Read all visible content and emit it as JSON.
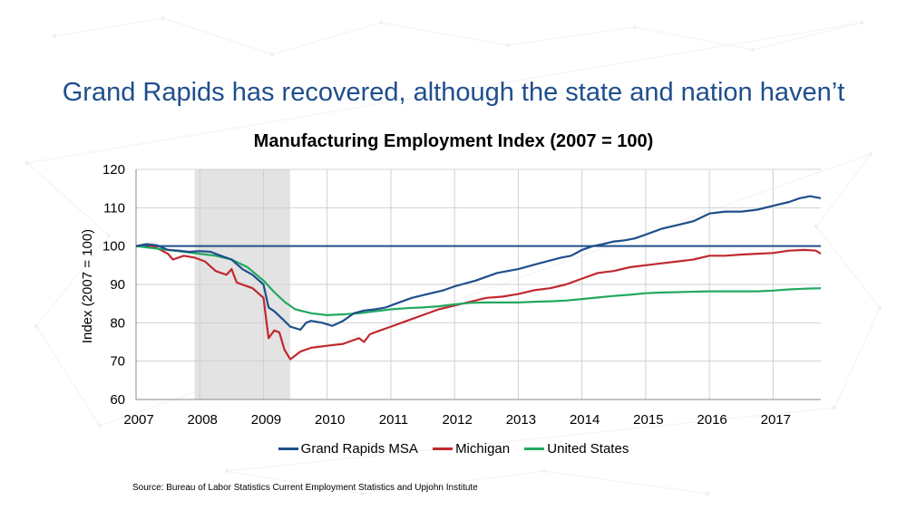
{
  "slide": {
    "title": "Grand Rapids has recovered, although the state and nation haven’t",
    "source": "Source: Bureau of Labor Statistics Current Employment Statistics and Upjohn Institute"
  },
  "chart_data": {
    "type": "line",
    "title": "Manufacturing Employment Index (2007 = 100)",
    "xlabel": "",
    "ylabel": "Index (2007 = 100)",
    "xlim": [
      2007,
      2017.75
    ],
    "ylim": [
      60,
      120
    ],
    "x_ticks": [
      "2007",
      "2008",
      "2009",
      "2010",
      "2011",
      "2012",
      "2013",
      "2014",
      "2015",
      "2016",
      "2017"
    ],
    "y_ticks": [
      "60",
      "70",
      "80",
      "90",
      "100",
      "110",
      "120"
    ],
    "grid": true,
    "legend": "bottom",
    "recession_shade": [
      2007.92,
      2009.42
    ],
    "reference_line": 100,
    "colors": {
      "grand_rapids": "#1f4e8c",
      "michigan": "#c0282e",
      "united_states": "#22a861",
      "reference": "#1f4e8c",
      "shade": "#e3e3e3",
      "grid": "#d0d0d0"
    },
    "series": [
      {
        "name": "Grand Rapids MSA",
        "points": [
          [
            2007,
            100
          ],
          [
            2007.17,
            100.5
          ],
          [
            2007.33,
            100.2
          ],
          [
            2007.5,
            99
          ],
          [
            2007.67,
            98.8
          ],
          [
            2007.83,
            98.5
          ],
          [
            2008,
            98.7
          ],
          [
            2008.17,
            98.5
          ],
          [
            2008.33,
            97.5
          ],
          [
            2008.5,
            96.5
          ],
          [
            2008.67,
            94
          ],
          [
            2008.83,
            92.5
          ],
          [
            2009,
            90
          ],
          [
            2009.08,
            84
          ],
          [
            2009.17,
            83
          ],
          [
            2009.33,
            80.5
          ],
          [
            2009.42,
            79
          ],
          [
            2009.58,
            78.2
          ],
          [
            2009.67,
            80
          ],
          [
            2009.75,
            80.5
          ],
          [
            2009.92,
            80
          ],
          [
            2010.08,
            79.2
          ],
          [
            2010.25,
            80.5
          ],
          [
            2010.42,
            82.5
          ],
          [
            2010.58,
            83.2
          ],
          [
            2010.75,
            83.5
          ],
          [
            2010.92,
            84
          ],
          [
            2011.08,
            85
          ],
          [
            2011.33,
            86.5
          ],
          [
            2011.58,
            87.5
          ],
          [
            2011.83,
            88.5
          ],
          [
            2012,
            89.5
          ],
          [
            2012.33,
            91
          ],
          [
            2012.67,
            93
          ],
          [
            2013,
            94
          ],
          [
            2013.33,
            95.5
          ],
          [
            2013.67,
            97
          ],
          [
            2013.83,
            97.5
          ],
          [
            2014,
            99
          ],
          [
            2014.17,
            100
          ],
          [
            2014.33,
            100.5
          ],
          [
            2014.5,
            101.2
          ],
          [
            2014.67,
            101.5
          ],
          [
            2014.83,
            102
          ],
          [
            2015,
            103
          ],
          [
            2015.25,
            104.5
          ],
          [
            2015.5,
            105.5
          ],
          [
            2015.75,
            106.5
          ],
          [
            2016,
            108.5
          ],
          [
            2016.25,
            109
          ],
          [
            2016.5,
            109
          ],
          [
            2016.75,
            109.5
          ],
          [
            2017,
            110.5
          ],
          [
            2017.25,
            111.5
          ],
          [
            2017.42,
            112.5
          ],
          [
            2017.58,
            113
          ],
          [
            2017.75,
            112.5
          ]
        ]
      },
      {
        "name": "Michigan",
        "points": [
          [
            2007,
            100
          ],
          [
            2007.17,
            100.5
          ],
          [
            2007.33,
            99.5
          ],
          [
            2007.5,
            98
          ],
          [
            2007.58,
            96.5
          ],
          [
            2007.75,
            97.5
          ],
          [
            2007.92,
            97
          ],
          [
            2008.08,
            96
          ],
          [
            2008.25,
            93.5
          ],
          [
            2008.42,
            92.5
          ],
          [
            2008.5,
            94
          ],
          [
            2008.58,
            90.5
          ],
          [
            2008.83,
            89
          ],
          [
            2009,
            86.5
          ],
          [
            2009.08,
            76
          ],
          [
            2009.17,
            78
          ],
          [
            2009.25,
            77.5
          ],
          [
            2009.33,
            73
          ],
          [
            2009.42,
            70.5
          ],
          [
            2009.58,
            72.5
          ],
          [
            2009.75,
            73.5
          ],
          [
            2010,
            74
          ],
          [
            2010.25,
            74.5
          ],
          [
            2010.5,
            76
          ],
          [
            2010.58,
            75
          ],
          [
            2010.67,
            77
          ],
          [
            2010.83,
            78
          ],
          [
            2011,
            79
          ],
          [
            2011.25,
            80.5
          ],
          [
            2011.5,
            82
          ],
          [
            2011.75,
            83.5
          ],
          [
            2012,
            84.5
          ],
          [
            2012.25,
            85.5
          ],
          [
            2012.5,
            86.5
          ],
          [
            2012.75,
            86.8
          ],
          [
            2013,
            87.5
          ],
          [
            2013.25,
            88.5
          ],
          [
            2013.5,
            89
          ],
          [
            2013.75,
            90
          ],
          [
            2014,
            91.5
          ],
          [
            2014.25,
            93
          ],
          [
            2014.5,
            93.5
          ],
          [
            2014.75,
            94.5
          ],
          [
            2015,
            95
          ],
          [
            2015.25,
            95.5
          ],
          [
            2015.5,
            96
          ],
          [
            2015.75,
            96.5
          ],
          [
            2016,
            97.5
          ],
          [
            2016.25,
            97.5
          ],
          [
            2016.5,
            97.8
          ],
          [
            2016.75,
            98
          ],
          [
            2017,
            98.2
          ],
          [
            2017.25,
            98.8
          ],
          [
            2017.5,
            99
          ],
          [
            2017.67,
            98.8
          ],
          [
            2017.75,
            98
          ]
        ]
      },
      {
        "name": "United States",
        "points": [
          [
            2007,
            100
          ],
          [
            2007.25,
            99.5
          ],
          [
            2007.5,
            99
          ],
          [
            2007.75,
            98.5
          ],
          [
            2008,
            98
          ],
          [
            2008.25,
            97.5
          ],
          [
            2008.5,
            96.5
          ],
          [
            2008.75,
            94.5
          ],
          [
            2009,
            91
          ],
          [
            2009.17,
            88
          ],
          [
            2009.33,
            85.5
          ],
          [
            2009.5,
            83.5
          ],
          [
            2009.75,
            82.5
          ],
          [
            2010,
            82
          ],
          [
            2010.25,
            82.2
          ],
          [
            2010.5,
            82.5
          ],
          [
            2010.75,
            83
          ],
          [
            2011,
            83.5
          ],
          [
            2011.25,
            83.8
          ],
          [
            2011.5,
            84
          ],
          [
            2011.75,
            84.3
          ],
          [
            2012,
            84.8
          ],
          [
            2012.25,
            85.2
          ],
          [
            2012.5,
            85.3
          ],
          [
            2012.75,
            85.3
          ],
          [
            2013,
            85.3
          ],
          [
            2013.25,
            85.5
          ],
          [
            2013.5,
            85.6
          ],
          [
            2013.75,
            85.8
          ],
          [
            2014,
            86.2
          ],
          [
            2014.25,
            86.6
          ],
          [
            2014.5,
            87
          ],
          [
            2014.75,
            87.3
          ],
          [
            2015,
            87.7
          ],
          [
            2015.25,
            87.9
          ],
          [
            2015.5,
            88
          ],
          [
            2015.75,
            88.1
          ],
          [
            2016,
            88.2
          ],
          [
            2016.25,
            88.2
          ],
          [
            2016.5,
            88.2
          ],
          [
            2016.75,
            88.2
          ],
          [
            2017,
            88.4
          ],
          [
            2017.25,
            88.7
          ],
          [
            2017.5,
            88.9
          ],
          [
            2017.75,
            89
          ]
        ]
      }
    ]
  }
}
